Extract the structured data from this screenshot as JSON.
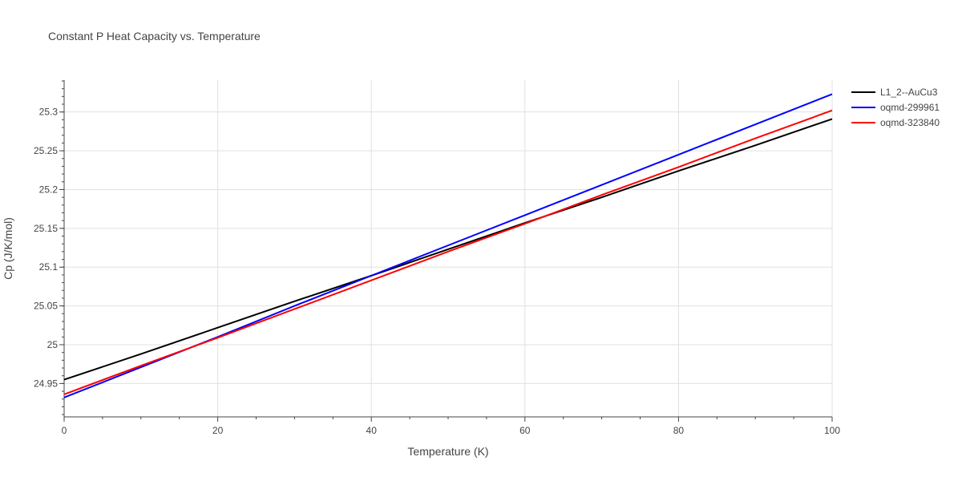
{
  "chart_data": {
    "type": "line",
    "title": "Constant P Heat Capacity vs. Temperature",
    "xlabel": "Temperature (K)",
    "ylabel": "Cp (J/K/mol)",
    "xlim": [
      0,
      100
    ],
    "ylim": [
      24.907,
      25.341
    ],
    "xticks": [
      0,
      20,
      40,
      60,
      80,
      100
    ],
    "xtick_labels": [
      "0",
      "20",
      "40",
      "60",
      "80",
      "100"
    ],
    "yticks": [
      24.95,
      25.0,
      25.05,
      25.1,
      25.15,
      25.2,
      25.25,
      25.3
    ],
    "ytick_labels": [
      "24.95",
      "25",
      "25.05",
      "25.1",
      "25.15",
      "25.2",
      "25.25",
      "25.3"
    ],
    "grid": true,
    "legend_position": "top-right",
    "x": [
      0,
      10,
      20,
      30,
      40,
      50,
      60,
      70,
      80,
      90,
      100
    ],
    "series": [
      {
        "name": "L1_2--AuCu3",
        "color": "#000000",
        "values": [
          24.955,
          24.988,
          25.022,
          25.056,
          25.089,
          25.123,
          25.157,
          25.19,
          25.224,
          25.257,
          25.291
        ]
      },
      {
        "name": "oqmd-299961",
        "color": "#0000ff",
        "values": [
          24.932,
          24.971,
          25.01,
          25.05,
          25.089,
          25.128,
          25.167,
          25.206,
          25.245,
          25.284,
          25.323
        ]
      },
      {
        "name": "oqmd-323840",
        "color": "#ff0000",
        "values": [
          24.936,
          24.973,
          25.009,
          25.046,
          25.083,
          25.12,
          25.156,
          25.193,
          25.229,
          25.266,
          25.302
        ]
      }
    ]
  }
}
